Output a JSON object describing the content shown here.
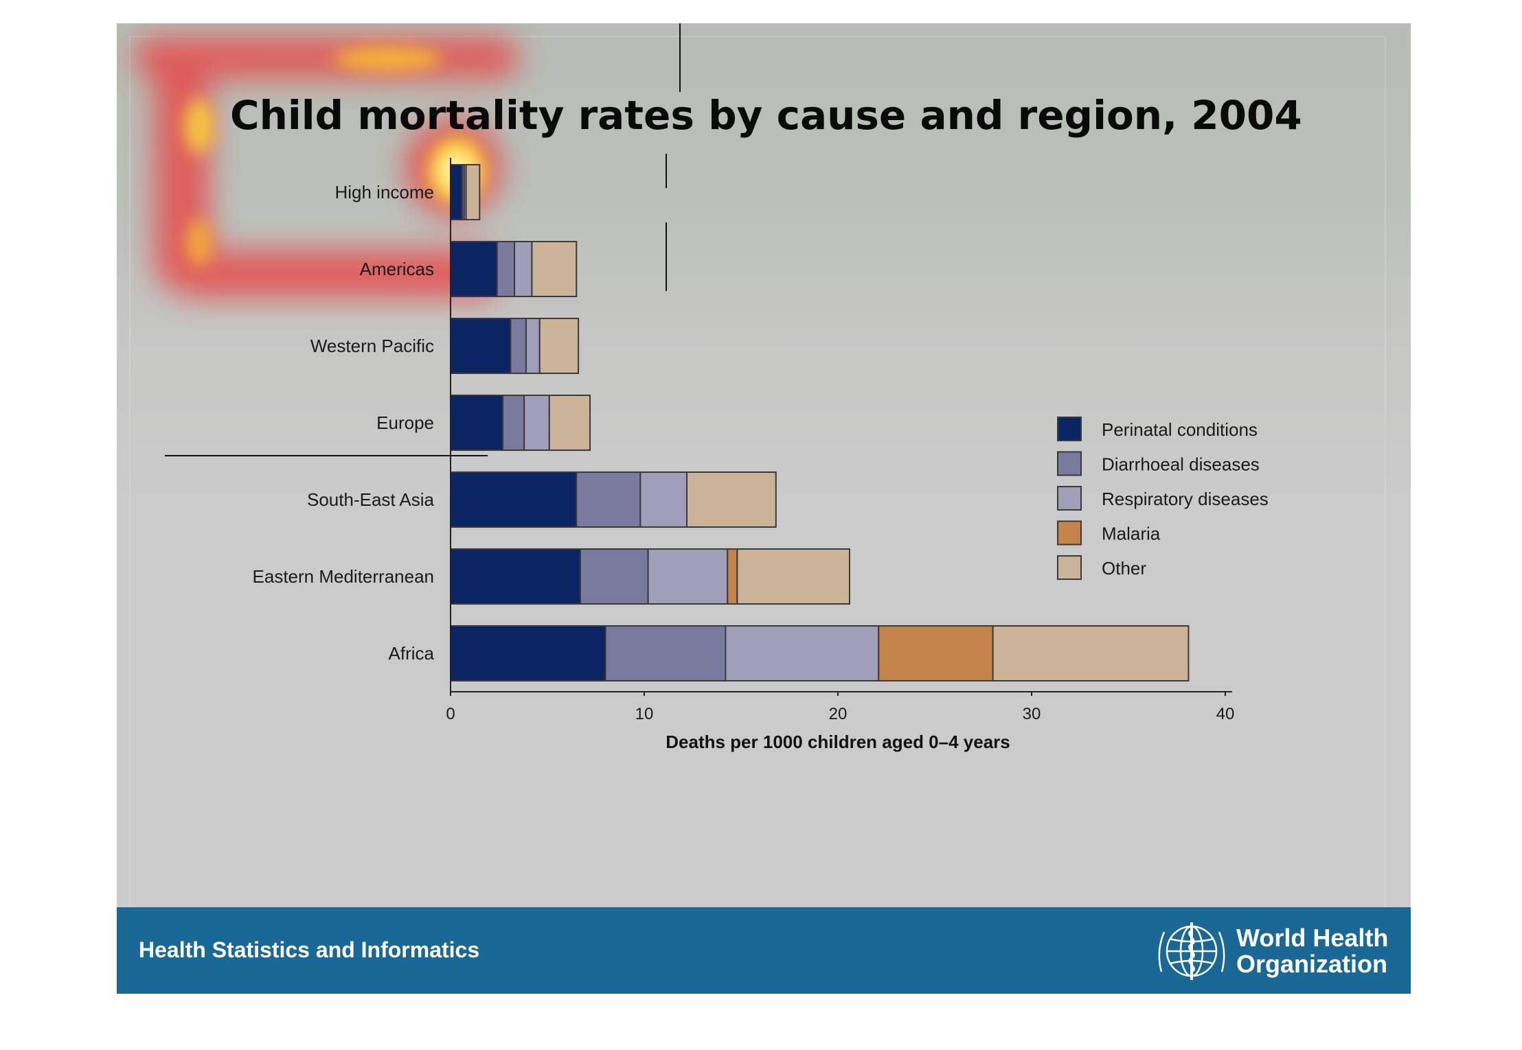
{
  "slide": {
    "title": "Child mortality rates by cause and region, 2004"
  },
  "footer": {
    "text": "Health Statistics and Informatics",
    "org_line1": "World Health",
    "org_line2": "Organization",
    "color": "#1a6896"
  },
  "chart_data": {
    "type": "bar",
    "orientation": "horizontal",
    "stacked": true,
    "title": "",
    "xlabel": "Deaths per 1000 children aged 0–4 years",
    "ylabel": "",
    "xlim": [
      0,
      40
    ],
    "xticks": [
      "0",
      "10",
      "20",
      "30",
      "40"
    ],
    "grid": false,
    "legend_position": "right",
    "categories": [
      "High income",
      "Americas",
      "Western Pacific",
      "Europe",
      "South-East Asia",
      "Eastern Mediterranean",
      "Africa"
    ],
    "series": [
      {
        "name": "Perinatal conditions",
        "color": "#0b2463",
        "values": [
          0.6,
          2.4,
          3.1,
          2.7,
          6.5,
          6.7,
          8.0
        ]
      },
      {
        "name": "Diarrhoeal diseases",
        "color": "#7a7a9e",
        "values": [
          0.1,
          0.9,
          0.8,
          1.1,
          3.3,
          3.5,
          6.2
        ]
      },
      {
        "name": "Respiratory diseases",
        "color": "#a09eb8",
        "values": [
          0.1,
          0.9,
          0.7,
          1.3,
          2.4,
          4.1,
          7.9
        ]
      },
      {
        "name": "Malaria",
        "color": "#c4834b",
        "values": [
          0.0,
          0.0,
          0.0,
          0.0,
          0.0,
          0.5,
          5.9
        ]
      },
      {
        "name": "Other",
        "color": "#cbb39a",
        "values": [
          0.7,
          2.3,
          2.0,
          2.1,
          4.6,
          5.8,
          10.1
        ]
      }
    ]
  }
}
